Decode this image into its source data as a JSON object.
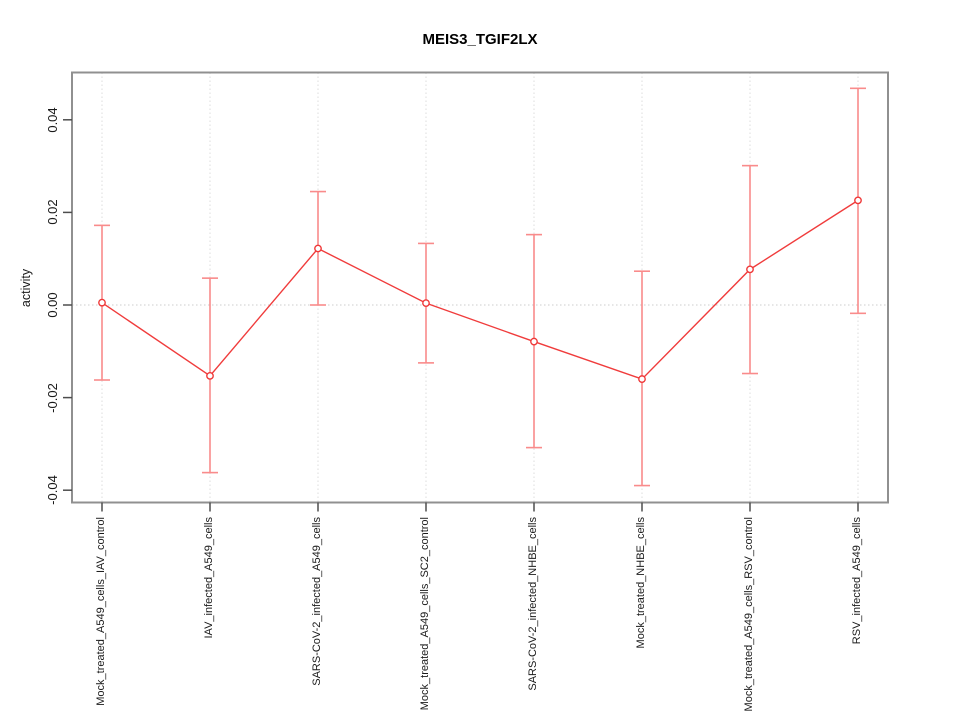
{
  "chart_data": {
    "type": "line",
    "title": "MEIS3_TGIF2LX",
    "xlabel": "",
    "ylabel": "activity",
    "categories": [
      "Mock_treated_A549_cells_IAV_control",
      "IAV_infected_A549_cells",
      "SARS-CoV-2_infected_A549_cells",
      "Mock_treated_A549_cells_SC2_control",
      "SARS-CoV-2_infected_NHBE_cells",
      "Mock_treated_NHBE_cells",
      "Mock_treated_A549_cells_RSV_control",
      "RSV_infected_A549_cells"
    ],
    "series": [
      {
        "name": "activity",
        "values": [
          0.0005,
          -0.0153,
          0.0122,
          0.0004,
          -0.0079,
          -0.016,
          0.0077,
          0.0226
        ],
        "error_high": [
          0.0172,
          0.0058,
          0.0245,
          0.0133,
          0.0152,
          0.0073,
          0.0301,
          0.0468
        ],
        "error_low": [
          -0.0162,
          -0.0362,
          0.0,
          -0.0125,
          -0.0308,
          -0.039,
          -0.0148,
          -0.0018
        ]
      }
    ],
    "ylim": [
      -0.0427,
      0.0502
    ],
    "yticks": [
      -0.04,
      -0.02,
      0,
      0.02,
      0.04
    ],
    "ytick_labels": [
      "-0.04",
      "-0.02",
      "0.00",
      "0.02",
      "0.04"
    ],
    "grid": "dotted vertical gridline at each category; dotted horizontal reference line at y=0",
    "legend": "none",
    "marker": "open-circle",
    "colors": {
      "line": "#f03c3c",
      "error_bar": "#f98b8b",
      "marker_stroke": "#ef3838",
      "marker_fill": "#ffffff",
      "box": "#909090",
      "tick": "#4d4d4d",
      "grid": "#dcdcdc",
      "zero_line": "#cccccc",
      "text": "#000000"
    }
  }
}
